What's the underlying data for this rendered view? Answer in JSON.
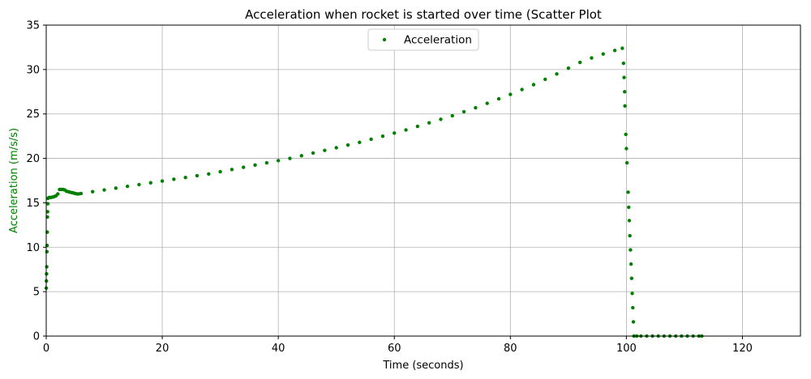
{
  "chart_data": {
    "type": "scatter",
    "title": "Acceleration when rocket is started over time (Scatter Plot",
    "xlabel": "Time (seconds)",
    "ylabel": "Acceleration (m/s/s)",
    "xlim": [
      0,
      130
    ],
    "ylim": [
      0,
      35
    ],
    "xticks": [
      0,
      20,
      40,
      60,
      80,
      100,
      120
    ],
    "yticks": [
      0,
      5,
      10,
      15,
      20,
      25,
      30,
      35
    ],
    "grid": true,
    "legend_position": "top-center",
    "series": [
      {
        "name": "Acceleration",
        "color": "#008000",
        "marker": "circle",
        "points": [
          [
            0.0,
            5.4
          ],
          [
            0.03,
            6.2
          ],
          [
            0.06,
            7.0
          ],
          [
            0.09,
            7.8
          ],
          [
            0.12,
            9.5
          ],
          [
            0.15,
            10.2
          ],
          [
            0.18,
            11.7
          ],
          [
            0.21,
            13.4
          ],
          [
            0.24,
            14.0
          ],
          [
            0.27,
            14.9
          ],
          [
            0.3,
            15.5
          ],
          [
            0.5,
            15.6
          ],
          [
            0.8,
            15.6
          ],
          [
            1.1,
            15.65
          ],
          [
            1.4,
            15.7
          ],
          [
            1.7,
            15.8
          ],
          [
            2.0,
            16.0
          ],
          [
            2.3,
            16.5
          ],
          [
            2.6,
            16.5
          ],
          [
            2.9,
            16.5
          ],
          [
            3.2,
            16.45
          ],
          [
            3.5,
            16.3
          ],
          [
            3.8,
            16.25
          ],
          [
            4.1,
            16.2
          ],
          [
            4.4,
            16.15
          ],
          [
            4.7,
            16.1
          ],
          [
            5.0,
            16.05
          ],
          [
            5.3,
            16.0
          ],
          [
            5.6,
            16.0
          ],
          [
            6,
            16.05
          ],
          [
            8,
            16.25
          ],
          [
            10,
            16.45
          ],
          [
            12,
            16.65
          ],
          [
            14,
            16.85
          ],
          [
            16,
            17.05
          ],
          [
            18,
            17.25
          ],
          [
            20,
            17.45
          ],
          [
            22,
            17.65
          ],
          [
            24,
            17.85
          ],
          [
            26,
            18.05
          ],
          [
            28,
            18.25
          ],
          [
            30,
            18.5
          ],
          [
            32,
            18.75
          ],
          [
            34,
            19.0
          ],
          [
            36,
            19.25
          ],
          [
            38,
            19.5
          ],
          [
            40,
            19.75
          ],
          [
            42,
            20.0
          ],
          [
            44,
            20.3
          ],
          [
            46,
            20.6
          ],
          [
            48,
            20.9
          ],
          [
            50,
            21.2
          ],
          [
            52,
            21.5
          ],
          [
            54,
            21.8
          ],
          [
            56,
            22.15
          ],
          [
            58,
            22.5
          ],
          [
            60,
            22.85
          ],
          [
            62,
            23.2
          ],
          [
            64,
            23.6
          ],
          [
            66,
            24.0
          ],
          [
            68,
            24.4
          ],
          [
            70,
            24.8
          ],
          [
            72,
            25.25
          ],
          [
            74,
            25.7
          ],
          [
            76,
            26.2
          ],
          [
            78,
            26.7
          ],
          [
            80,
            27.2
          ],
          [
            82,
            27.75
          ],
          [
            84,
            28.3
          ],
          [
            86,
            28.9
          ],
          [
            88,
            29.5
          ],
          [
            90,
            30.15
          ],
          [
            92,
            30.8
          ],
          [
            94,
            31.3
          ],
          [
            96,
            31.75
          ],
          [
            98,
            32.15
          ],
          [
            99.3,
            32.4
          ],
          [
            99.5,
            30.7
          ],
          [
            99.6,
            29.1
          ],
          [
            99.7,
            27.5
          ],
          [
            99.75,
            25.9
          ],
          [
            99.9,
            22.7
          ],
          [
            100.0,
            21.1
          ],
          [
            100.1,
            19.5
          ],
          [
            100.3,
            16.2
          ],
          [
            100.4,
            14.5
          ],
          [
            100.5,
            13.0
          ],
          [
            100.6,
            11.3
          ],
          [
            100.7,
            9.7
          ],
          [
            100.8,
            8.1
          ],
          [
            100.9,
            6.5
          ],
          [
            101.0,
            4.8
          ],
          [
            101.1,
            3.2
          ],
          [
            101.2,
            1.6
          ],
          [
            101.3,
            0.0
          ],
          [
            101.8,
            0.0
          ],
          [
            102.5,
            0.0
          ],
          [
            103.5,
            0.0
          ],
          [
            104.5,
            0.0
          ],
          [
            105.5,
            0.0
          ],
          [
            106.5,
            0.0
          ],
          [
            107.5,
            0.0
          ],
          [
            108.5,
            0.0
          ],
          [
            109.5,
            0.0
          ],
          [
            110.5,
            0.0
          ],
          [
            111.5,
            0.0
          ],
          [
            112.5,
            0.0
          ],
          [
            113.0,
            0.0
          ]
        ]
      }
    ]
  }
}
